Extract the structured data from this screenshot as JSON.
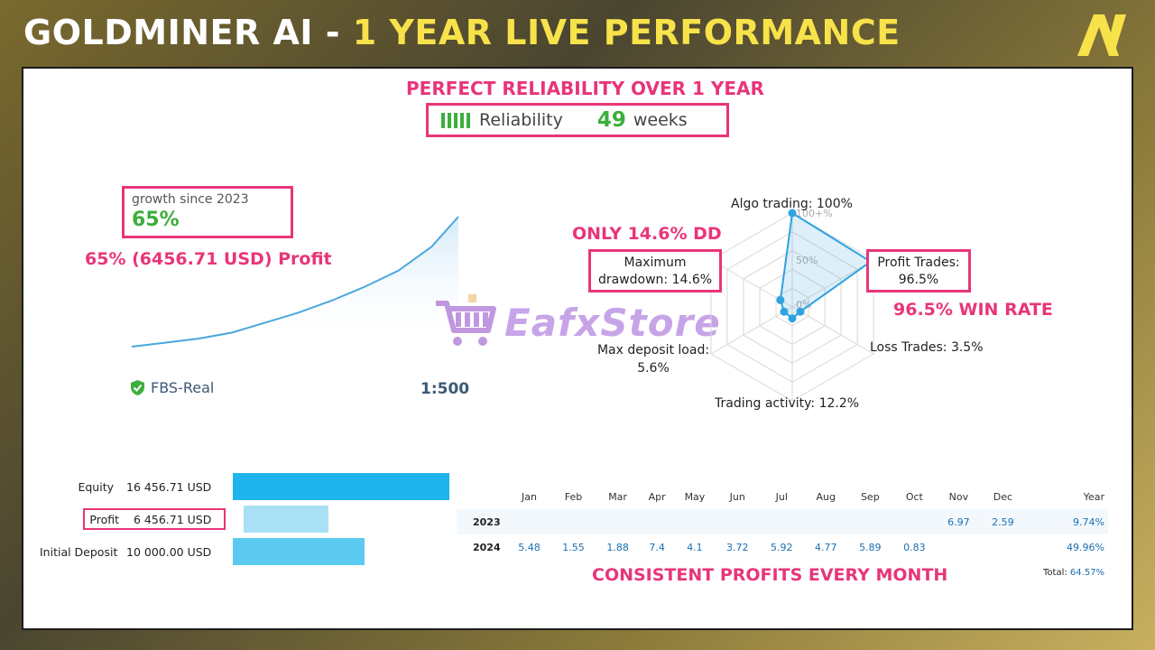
{
  "header": {
    "title_main": "GOLDMINER AI - ",
    "title_highlight": "1 YEAR LIVE PERFORMANCE",
    "logo_text": "AV"
  },
  "reliability": {
    "caption": "PERFECT RELIABILITY OVER 1 YEAR",
    "label": "Reliability",
    "weeks_value": "49",
    "weeks_label": "weeks"
  },
  "growth": {
    "label": "growth since 2023",
    "value": "65%",
    "profit_caption": "65% (6456.71 USD) Profit",
    "broker": "FBS-Real",
    "leverage": "1:500"
  },
  "watermark": "EafxStore",
  "radar": {
    "dd_caption": "ONLY 14.6% DD",
    "win_caption": "96.5% WIN RATE",
    "grid_labels": [
      "100+%",
      "50%",
      "0%"
    ],
    "axes": [
      {
        "label": "Algo trading: 100%",
        "value": 100
      },
      {
        "label": "Profit Trades: 96.5%",
        "value": 96.5
      },
      {
        "label": "Loss Trades: 3.5%",
        "value": 3.5
      },
      {
        "label": "Trading activity: 12.2%",
        "value": 12.2
      },
      {
        "label": "Max deposit load: 5.6%",
        "value": 5.6
      },
      {
        "label": "Maximum drawdown: 14.6%",
        "value": 14.6
      }
    ],
    "dd_line1": "Maximum",
    "dd_line2": "drawdown: 14.6%",
    "pt_line1": "Profit Trades:",
    "pt_line2": "96.5%",
    "md_line1": "Max deposit load:",
    "md_line2": "5.6%",
    "algo_label": "Algo trading: 100%",
    "loss_label": "Loss Trades: 3.5%",
    "activity_label": "Trading activity: 12.2%"
  },
  "balances": [
    {
      "label": "Equity",
      "value": "16 456.71 USD",
      "amount": 16456.71,
      "color": "#1fb4ec"
    },
    {
      "label": "Profit",
      "value": "6 456.71 USD",
      "amount": 6456.71,
      "color": "#a9e0f6"
    },
    {
      "label": "Initial Deposit",
      "value": "10 000.00 USD",
      "amount": 10000.0,
      "color": "#5ccaf0"
    }
  ],
  "monthly": {
    "months": [
      "Jan",
      "Feb",
      "Mar",
      "Apr",
      "May",
      "Jun",
      "Jul",
      "Aug",
      "Sep",
      "Oct",
      "Nov",
      "Dec"
    ],
    "year_header": "Year",
    "rows": [
      {
        "year": "2023",
        "values": [
          "",
          "",
          "",
          "",
          "",
          "",
          "",
          "",
          "",
          "",
          "6.97",
          "2.59"
        ],
        "total": "9.74%"
      },
      {
        "year": "2024",
        "values": [
          "5.48",
          "1.55",
          "1.88",
          "7.4",
          "4.1",
          "3.72",
          "5.92",
          "4.77",
          "5.89",
          "0.83",
          "",
          ""
        ],
        "total": "49.96%"
      }
    ],
    "total_label": "Total:",
    "total_value": "64.57%",
    "caption": "CONSISTENT PROFITS EVERY MONTH"
  },
  "chart_data": [
    {
      "type": "line",
      "title": "growth since 2023",
      "x": [
        0,
        5,
        10,
        15,
        20,
        25,
        30,
        35,
        40,
        45,
        49
      ],
      "y": [
        0,
        2,
        4,
        7,
        12,
        17,
        23,
        30,
        38,
        50,
        65
      ],
      "ylim": [
        0,
        65
      ],
      "ylabel": "",
      "xlabel": "",
      "color": "#4aa8dd"
    },
    {
      "type": "radar",
      "categories": [
        "Algo trading",
        "Profit Trades",
        "Loss Trades",
        "Trading activity",
        "Max deposit load",
        "Maximum drawdown"
      ],
      "values": [
        100,
        96.5,
        3.5,
        12.2,
        5.6,
        14.6
      ],
      "range": [
        0,
        100
      ]
    },
    {
      "type": "bar",
      "orientation": "horizontal",
      "categories": [
        "Equity",
        "Profit",
        "Initial Deposit"
      ],
      "values": [
        16456.71,
        6456.71,
        10000.0
      ]
    },
    {
      "type": "table",
      "columns": [
        "Jan",
        "Feb",
        "Mar",
        "Apr",
        "May",
        "Jun",
        "Jul",
        "Aug",
        "Sep",
        "Oct",
        "Nov",
        "Dec",
        "Year"
      ],
      "rows": [
        {
          "year": "2023",
          "values": [
            null,
            null,
            null,
            null,
            null,
            null,
            null,
            null,
            null,
            null,
            6.97,
            2.59
          ],
          "total": 9.74
        },
        {
          "year": "2024",
          "values": [
            5.48,
            1.55,
            1.88,
            7.4,
            4.1,
            3.72,
            5.92,
            4.77,
            5.89,
            0.83,
            null,
            null
          ],
          "total": 49.96
        }
      ],
      "grand_total": 64.57
    }
  ]
}
